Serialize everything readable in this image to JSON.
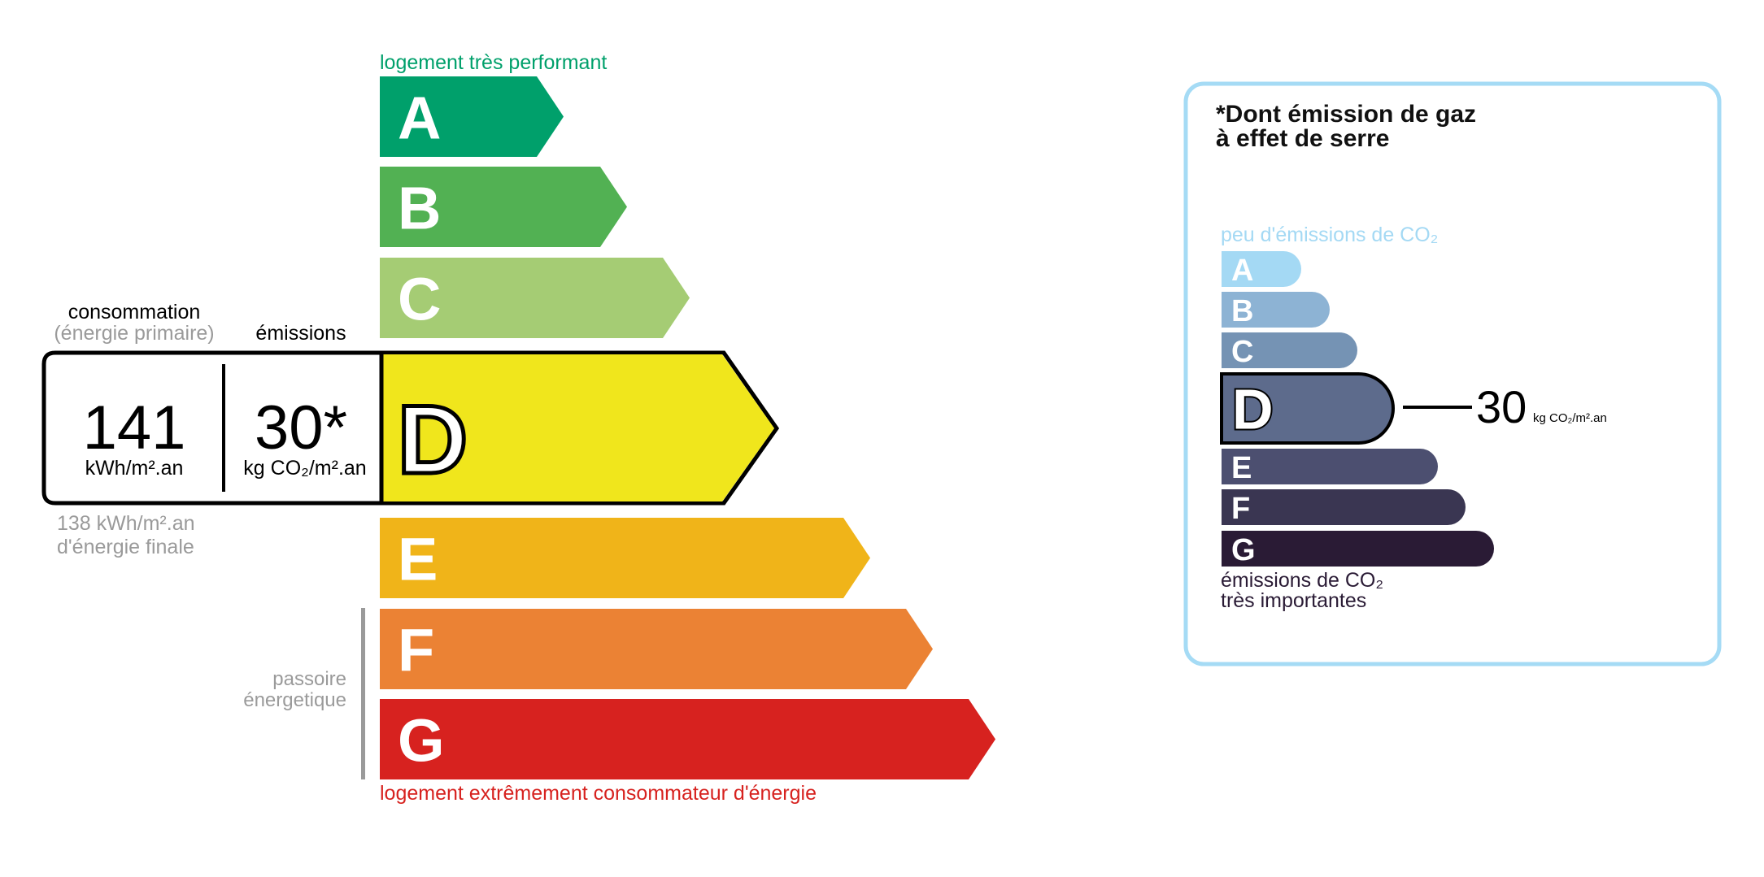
{
  "energy": {
    "top_label": "logement très performant",
    "bottom_label": "logement extrêmement consommateur d'énergie",
    "passoire": [
      "passoire",
      "énergetique"
    ],
    "classes": [
      {
        "letter": "A",
        "color": "#00a06b"
      },
      {
        "letter": "B",
        "color": "#52b153"
      },
      {
        "letter": "C",
        "color": "#a5cc74"
      },
      {
        "letter": "D",
        "color": "#f0e61c"
      },
      {
        "letter": "E",
        "color": "#f0b419"
      },
      {
        "letter": "F",
        "color": "#eb8234"
      },
      {
        "letter": "G",
        "color": "#d7221f"
      }
    ],
    "active_class": "D",
    "consumption_label": "consommation",
    "consumption_sublabel": "(énergie primaire)",
    "emissions_label": "émissions",
    "consumption_value": "141",
    "consumption_unit": "kWh/m².an",
    "emissions_value": "30*",
    "emissions_unit": "kg CO₂/m².an",
    "final_energy_value": "138 kWh/m².an",
    "final_energy_label": "d'énergie finale"
  },
  "ges": {
    "title_line1": "*Dont émission de gaz",
    "title_line2": "à effet de serre",
    "top_label": "peu d'émissions de CO₂",
    "bottom_label_line1": "émissions de CO₂",
    "bottom_label_line2": "très importantes",
    "classes": [
      {
        "letter": "A",
        "color": "#a4d9f4"
      },
      {
        "letter": "B",
        "color": "#8db3d4"
      },
      {
        "letter": "C",
        "color": "#7593b4"
      },
      {
        "letter": "D",
        "color": "#5d6b8c"
      },
      {
        "letter": "E",
        "color": "#4c4f70"
      },
      {
        "letter": "F",
        "color": "#3a3652"
      },
      {
        "letter": "G",
        "color": "#2a1b35"
      }
    ],
    "active_class": "D",
    "value": "30",
    "unit": "kg CO₂/m².an",
    "border_color": "#a5dbf5"
  }
}
